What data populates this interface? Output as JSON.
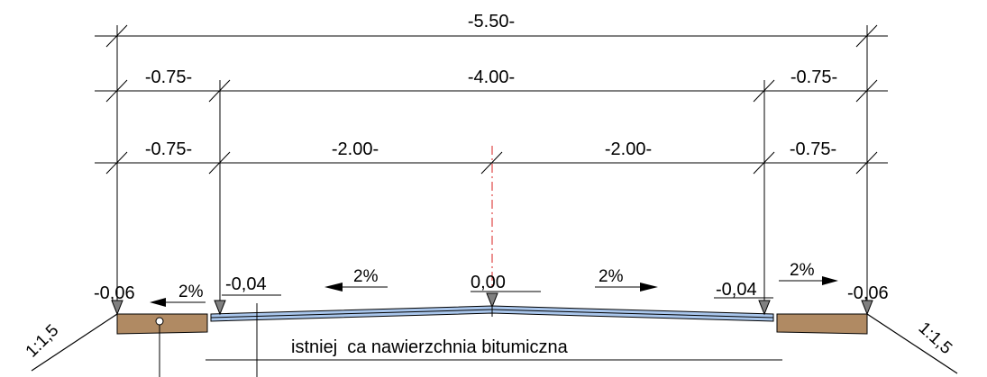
{
  "dimensions": {
    "total": "-5.50-",
    "left_shoulder": "-0.75-",
    "roadway": "-4.00-",
    "right_shoulder": "-0.75-",
    "left_shoulder_2": "-0.75-",
    "left_lane": "-2.00-",
    "right_lane": "-2.00-",
    "right_shoulder_2": "-0.75-"
  },
  "elevations": {
    "left_edge": "-0,06",
    "left_pavement_edge": "-0,04",
    "axis": "0,00",
    "right_pavement_edge": "-0,04",
    "right_edge": "-0,06"
  },
  "slopes": {
    "left_shoulder": "2%",
    "left_lane": "2%",
    "right_lane": "2%",
    "right_shoulder": "2%"
  },
  "embankment": {
    "left": "1:1,5",
    "right": "1:1,5"
  },
  "note": "istniej  ca nawierzchnia bitumiczna",
  "colors": {
    "shoulder_fill": "#b08a63",
    "pavement_fill": "#a9c6ec",
    "axis_line": "#d9211f",
    "line": "#000000",
    "arrow_fill": "#808080"
  }
}
